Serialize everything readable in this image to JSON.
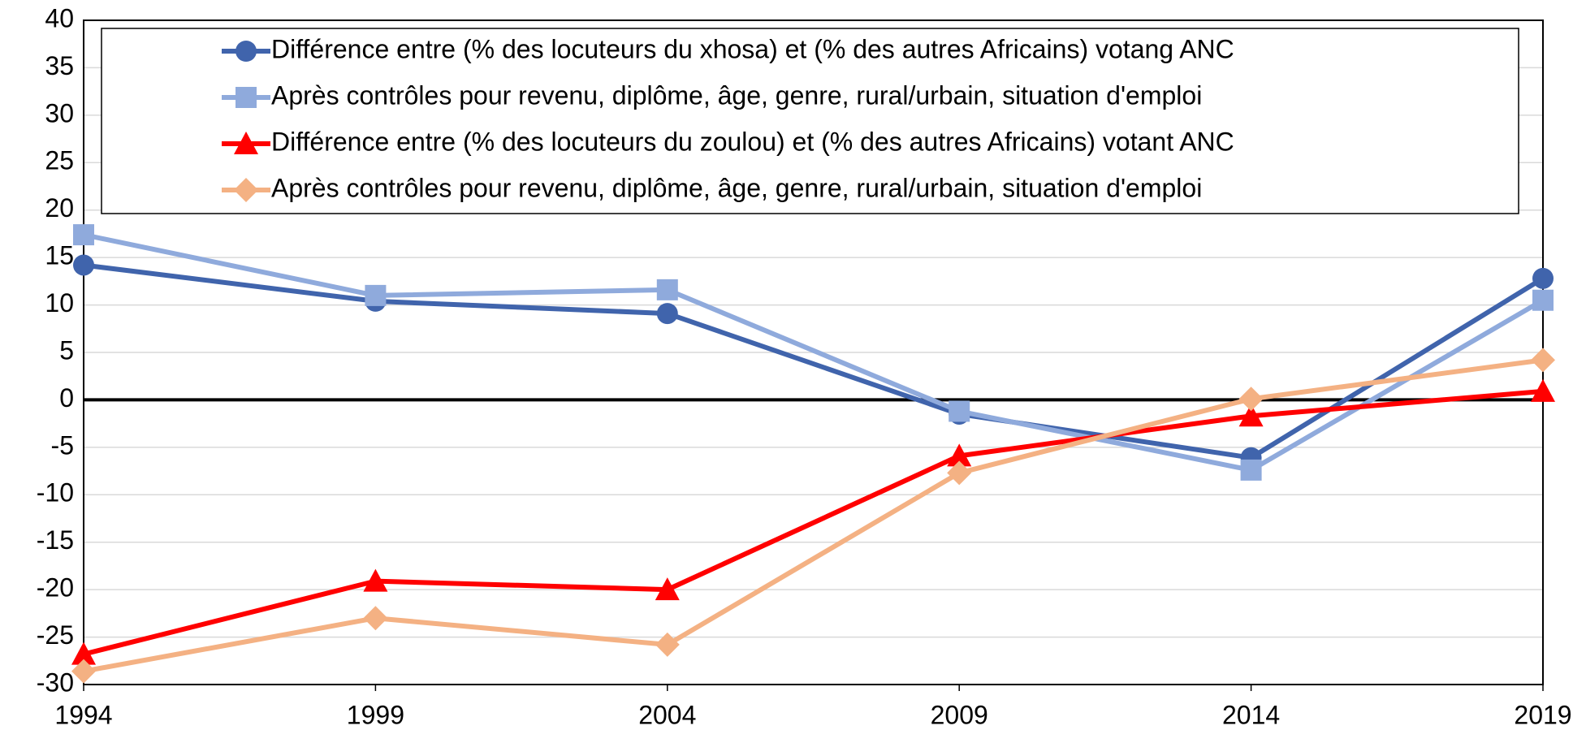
{
  "chart_data": {
    "type": "line",
    "x": [
      1994,
      1999,
      2004,
      2009,
      2014,
      2019
    ],
    "xlim": [
      1994,
      2019
    ],
    "xticks": [
      1994,
      1999,
      2004,
      2009,
      2014,
      2019
    ],
    "ylim": [
      -30,
      40
    ],
    "yticks": [
      -30,
      -25,
      -20,
      -15,
      -10,
      -5,
      0,
      5,
      10,
      15,
      20,
      25,
      30,
      35,
      40
    ],
    "grid": true,
    "legend": "top",
    "series": [
      {
        "name": "Différence entre (% des locuteurs du xhosa) et (% des autres Africains) votang ANC",
        "color": "#4064ac",
        "marker": "circle",
        "values": [
          14.2,
          10.4,
          9.1,
          -1.5,
          -6.1,
          12.8
        ]
      },
      {
        "name": "Après contrôles pour revenu, diplôme, âge, genre, rural/urbain, situation d'emploi",
        "color": "#8faadc",
        "marker": "square",
        "values": [
          17.4,
          11.0,
          11.6,
          -1.2,
          -7.4,
          10.5
        ]
      },
      {
        "name": "Différence entre (% des locuteurs du zoulou) et (% des autres Africains) votant ANC",
        "color": "#ff0000",
        "marker": "triangle",
        "values": [
          -26.8,
          -19.1,
          -20.0,
          -5.9,
          -1.7,
          0.9
        ]
      },
      {
        "name": "Après contrôles pour revenu, diplôme, âge, genre, rural/urbain, situation d'emploi",
        "color": "#f4b183",
        "marker": "diamond",
        "values": [
          -28.6,
          -23.0,
          -25.8,
          -7.7,
          0.1,
          4.2
        ]
      }
    ]
  }
}
